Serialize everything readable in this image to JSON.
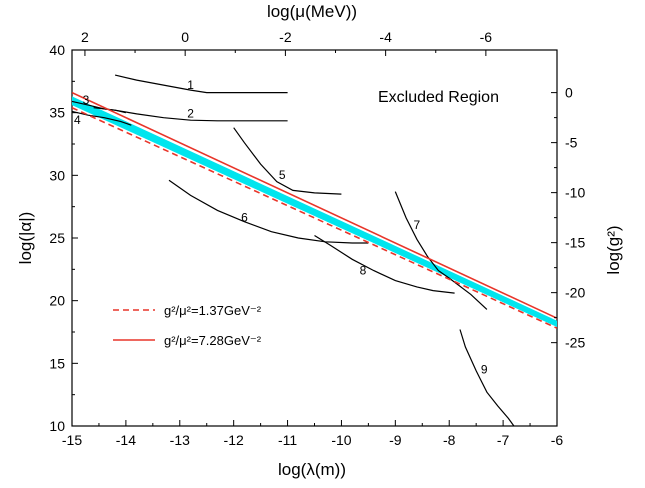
{
  "chart_data": {
    "type": "line",
    "title": "",
    "xlabel": "log(λ(m))",
    "ylabel": "log(|α|)",
    "x2label": "log(μ(MeV))",
    "y2label": "log(g²)",
    "xlim": [
      -15,
      -6
    ],
    "ylim": [
      10,
      40
    ],
    "x_ticks": [
      -15,
      -14,
      -13,
      -12,
      -11,
      -10,
      -9,
      -8,
      -7,
      -6
    ],
    "y_ticks": [
      10,
      15,
      20,
      25,
      30,
      35,
      40
    ],
    "x2_ticks": [
      {
        "value": 2,
        "label": "2"
      },
      {
        "value": 0,
        "label": "0"
      },
      {
        "value": -2,
        "label": "-2"
      },
      {
        "value": -4,
        "label": "-4"
      },
      {
        "value": -6,
        "label": "-6"
      }
    ],
    "y2_ticks": [
      {
        "value": 0,
        "label": "0"
      },
      {
        "value": -5,
        "label": "-5"
      },
      {
        "value": -10,
        "label": "-10"
      },
      {
        "value": -15,
        "label": "-15"
      },
      {
        "value": -20,
        "label": "-20"
      },
      {
        "value": -25,
        "label": "-25"
      }
    ],
    "annotation": "Excluded Region",
    "band": {
      "color": "#00e5ee",
      "upper": [
        [
          -15,
          36.3
        ],
        [
          -6,
          18.4
        ]
      ],
      "lower": [
        [
          -15,
          35.6
        ],
        [
          -6,
          17.9
        ]
      ]
    },
    "series": [
      {
        "name": "g²/μ²=1.37GeV⁻²",
        "style": "dashed",
        "color": "#e8352a",
        "points": [
          [
            -15,
            35.4
          ],
          [
            -6,
            17.8
          ]
        ]
      },
      {
        "name": "g²/μ²=7.28GeV⁻²",
        "style": "solid",
        "color": "#e8352a",
        "points": [
          [
            -15,
            36.6
          ],
          [
            -6,
            18.6
          ]
        ]
      }
    ],
    "constraint_curves": [
      {
        "label": "1",
        "label_at": [
          -12.8,
          36.9
        ],
        "points": [
          [
            -14.2,
            38
          ],
          [
            -13.8,
            37.6
          ],
          [
            -13.3,
            37.2
          ],
          [
            -12.8,
            36.8
          ],
          [
            -12.5,
            36.6
          ],
          [
            -12,
            36.6
          ],
          [
            -11.5,
            36.6
          ],
          [
            -11,
            36.6
          ]
        ]
      },
      {
        "label": "2",
        "label_at": [
          -12.8,
          34.6
        ],
        "points": [
          [
            -14.6,
            35.4
          ],
          [
            -14.2,
            35.2
          ],
          [
            -13.8,
            34.9
          ],
          [
            -13.3,
            34.6
          ],
          [
            -12.8,
            34.4
          ],
          [
            -12.3,
            34.35
          ],
          [
            -11.5,
            34.35
          ],
          [
            -11,
            34.35
          ]
        ]
      },
      {
        "label": "3",
        "label_at": [
          -14.74,
          35.7
        ],
        "points": [
          [
            -15,
            35.9
          ],
          [
            -14.7,
            35.6
          ],
          [
            -14.4,
            35.3
          ],
          [
            -14.2,
            35.2
          ],
          [
            -14,
            35.0
          ]
        ]
      },
      {
        "label": "4",
        "label_at": [
          -14.9,
          34.1
        ],
        "points": [
          [
            -15,
            35.1
          ],
          [
            -14.7,
            34.8
          ],
          [
            -14.4,
            34.6
          ],
          [
            -14.1,
            34.3
          ],
          [
            -13.9,
            34.0
          ]
        ]
      },
      {
        "label": "5",
        "label_at": [
          -11.1,
          29.7
        ],
        "points": [
          [
            -12,
            33.8
          ],
          [
            -11.8,
            32.6
          ],
          [
            -11.5,
            30.9
          ],
          [
            -11.2,
            29.5
          ],
          [
            -10.9,
            28.8
          ],
          [
            -10.5,
            28.6
          ],
          [
            -10,
            28.5
          ]
        ]
      },
      {
        "label": "6",
        "label_at": [
          -11.8,
          26.3
        ],
        "points": [
          [
            -13.2,
            29.6
          ],
          [
            -12.8,
            28.4
          ],
          [
            -12.3,
            27.2
          ],
          [
            -11.8,
            26.3
          ],
          [
            -11.3,
            25.5
          ],
          [
            -10.8,
            25
          ],
          [
            -10.3,
            24.7
          ],
          [
            -9.8,
            24.6
          ],
          [
            -9.5,
            24.6
          ]
        ]
      },
      {
        "label": "7",
        "label_at": [
          -8.6,
          25.7
        ],
        "points": [
          [
            -9.0,
            28.7
          ],
          [
            -8.8,
            26.6
          ],
          [
            -8.6,
            24.9
          ],
          [
            -8.4,
            23.5
          ],
          [
            -8.2,
            22.4
          ],
          [
            -8.0,
            21.8
          ],
          [
            -7.6,
            20.5
          ],
          [
            -7.3,
            19.3
          ]
        ]
      },
      {
        "label": "8",
        "label_at": [
          -9.6,
          22.1
        ],
        "points": [
          [
            -10.5,
            25.2
          ],
          [
            -10.2,
            24.4
          ],
          [
            -9.8,
            23.3
          ],
          [
            -9.4,
            22.4
          ],
          [
            -9,
            21.6
          ],
          [
            -8.6,
            21.1
          ],
          [
            -8.3,
            20.8
          ],
          [
            -7.9,
            20.6
          ]
        ]
      },
      {
        "label": "9",
        "label_at": [
          -7.35,
          14.2
        ],
        "points": [
          [
            -7.8,
            17.7
          ],
          [
            -7.7,
            16.3
          ],
          [
            -7.5,
            14.4
          ],
          [
            -7.3,
            12.7
          ],
          [
            -7.1,
            11.6
          ],
          [
            -6.9,
            10.6
          ],
          [
            -6.8,
            10
          ]
        ]
      }
    ]
  }
}
